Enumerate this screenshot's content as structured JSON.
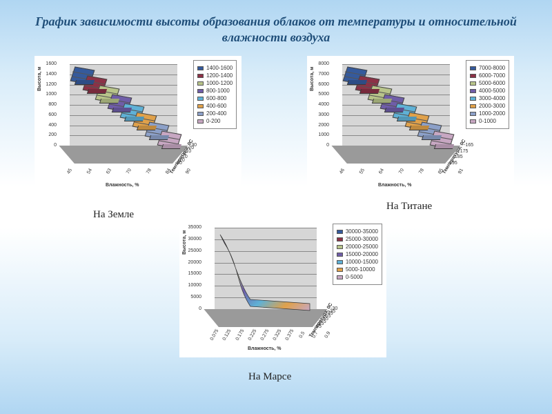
{
  "title": "График зависимости высоты образования облаков от температуры и относительной влажности воздуха",
  "background_gradient": [
    "#b0d6f2",
    "#ffffff",
    "#b0d6f2"
  ],
  "title_color": "#1f4e79",
  "title_fontsize": 18,
  "caption_fontsize": 15,
  "charts": [
    {
      "id": "earth",
      "caption": "На Земле",
      "type": "3d-surface-contour",
      "z_label": "Высота, м",
      "x_label": "Влажность, %",
      "y_label": "Температура, 0С",
      "z_ticks": [
        0,
        200,
        400,
        600,
        800,
        1000,
        1200,
        1400,
        1600
      ],
      "x_ticks": [
        45,
        54,
        63,
        70,
        78,
        84,
        90
      ],
      "y_ticks": [
        -30,
        -20,
        -10,
        0,
        10,
        20,
        30
      ],
      "backwall_color": "#d6d6d6",
      "floor_color": "#9a9a9a",
      "grid_color": "#888888",
      "bands": [
        {
          "label": "1400-1600",
          "color": "#355a9c"
        },
        {
          "label": "1200-1400",
          "color": "#8c3146"
        },
        {
          "label": "1000-1200",
          "color": "#b8c48a"
        },
        {
          "label": "800-1000",
          "color": "#6f5da8"
        },
        {
          "label": "600-800",
          "color": "#5fb1d6"
        },
        {
          "label": "400-600",
          "color": "#e0a14a"
        },
        {
          "label": "200-400",
          "color": "#8ca0c8"
        },
        {
          "label": "0-200",
          "color": "#c7a7c2"
        }
      ],
      "surface_style": {
        "type": "diagonal-staircase",
        "direction": "down-right",
        "top_left_z": 1550,
        "bottom_right_z": 80
      }
    },
    {
      "id": "titan",
      "caption": "На Титане",
      "type": "3d-surface-contour",
      "z_label": "Высота, м",
      "x_label": "Влажность, %",
      "y_label": "Температура, 0С",
      "z_ticks": [
        0,
        1000,
        2000,
        3000,
        4000,
        5000,
        6000,
        7000,
        8000
      ],
      "x_ticks": [
        46,
        55,
        64,
        70,
        78,
        85,
        91
      ],
      "y_ticks": [
        -195,
        -185,
        -175,
        -165
      ],
      "backwall_color": "#d6d6d6",
      "floor_color": "#9a9a9a",
      "grid_color": "#888888",
      "bands": [
        {
          "label": "7000-8000",
          "color": "#355a9c"
        },
        {
          "label": "6000-7000",
          "color": "#8c3146"
        },
        {
          "label": "5000-6000",
          "color": "#b8c48a"
        },
        {
          "label": "4000-5000",
          "color": "#6f5da8"
        },
        {
          "label": "3000-4000",
          "color": "#5fb1d6"
        },
        {
          "label": "2000-3000",
          "color": "#e0a14a"
        },
        {
          "label": "1000-2000",
          "color": "#8ca0c8"
        },
        {
          "label": "0-1000",
          "color": "#c7a7c2"
        }
      ],
      "surface_style": {
        "type": "diagonal-staircase",
        "direction": "down-right",
        "top_left_z": 7800,
        "bottom_right_z": 400
      }
    },
    {
      "id": "mars",
      "caption": "На Марсе",
      "type": "3d-surface-contour",
      "z_label": "Высота, м",
      "x_label": "Влажность, %",
      "y_label": "Температура, 0С",
      "z_ticks": [
        0,
        5000,
        10000,
        15000,
        20000,
        25000,
        30000,
        35000
      ],
      "x_ticks": [
        0.075,
        0.125,
        0.175,
        0.225,
        0.275,
        0.325,
        0.375,
        0.5,
        0.7,
        0.9
      ],
      "y_ticks": [
        -95,
        -85,
        -75,
        -65,
        -55,
        -45,
        -35,
        -30
      ],
      "backwall_color": "#d6d6d6",
      "floor_color": "#9a9a9a",
      "grid_color": "#888888",
      "bands": [
        {
          "label": "30000-35000",
          "color": "#355a9c"
        },
        {
          "label": "25000-30000",
          "color": "#8c3146"
        },
        {
          "label": "20000-25000",
          "color": "#b8c48a"
        },
        {
          "label": "15000-20000",
          "color": "#6f5da8"
        },
        {
          "label": "10000-15000",
          "color": "#5fb1d6"
        },
        {
          "label": "5000-10000",
          "color": "#e0a14a"
        },
        {
          "label": "0-5000",
          "color": "#c7a7c2"
        }
      ],
      "surface_style": {
        "type": "decay-curve",
        "direction": "down-right",
        "top_left_z": 32000,
        "bottom_right_z": 800
      }
    }
  ]
}
